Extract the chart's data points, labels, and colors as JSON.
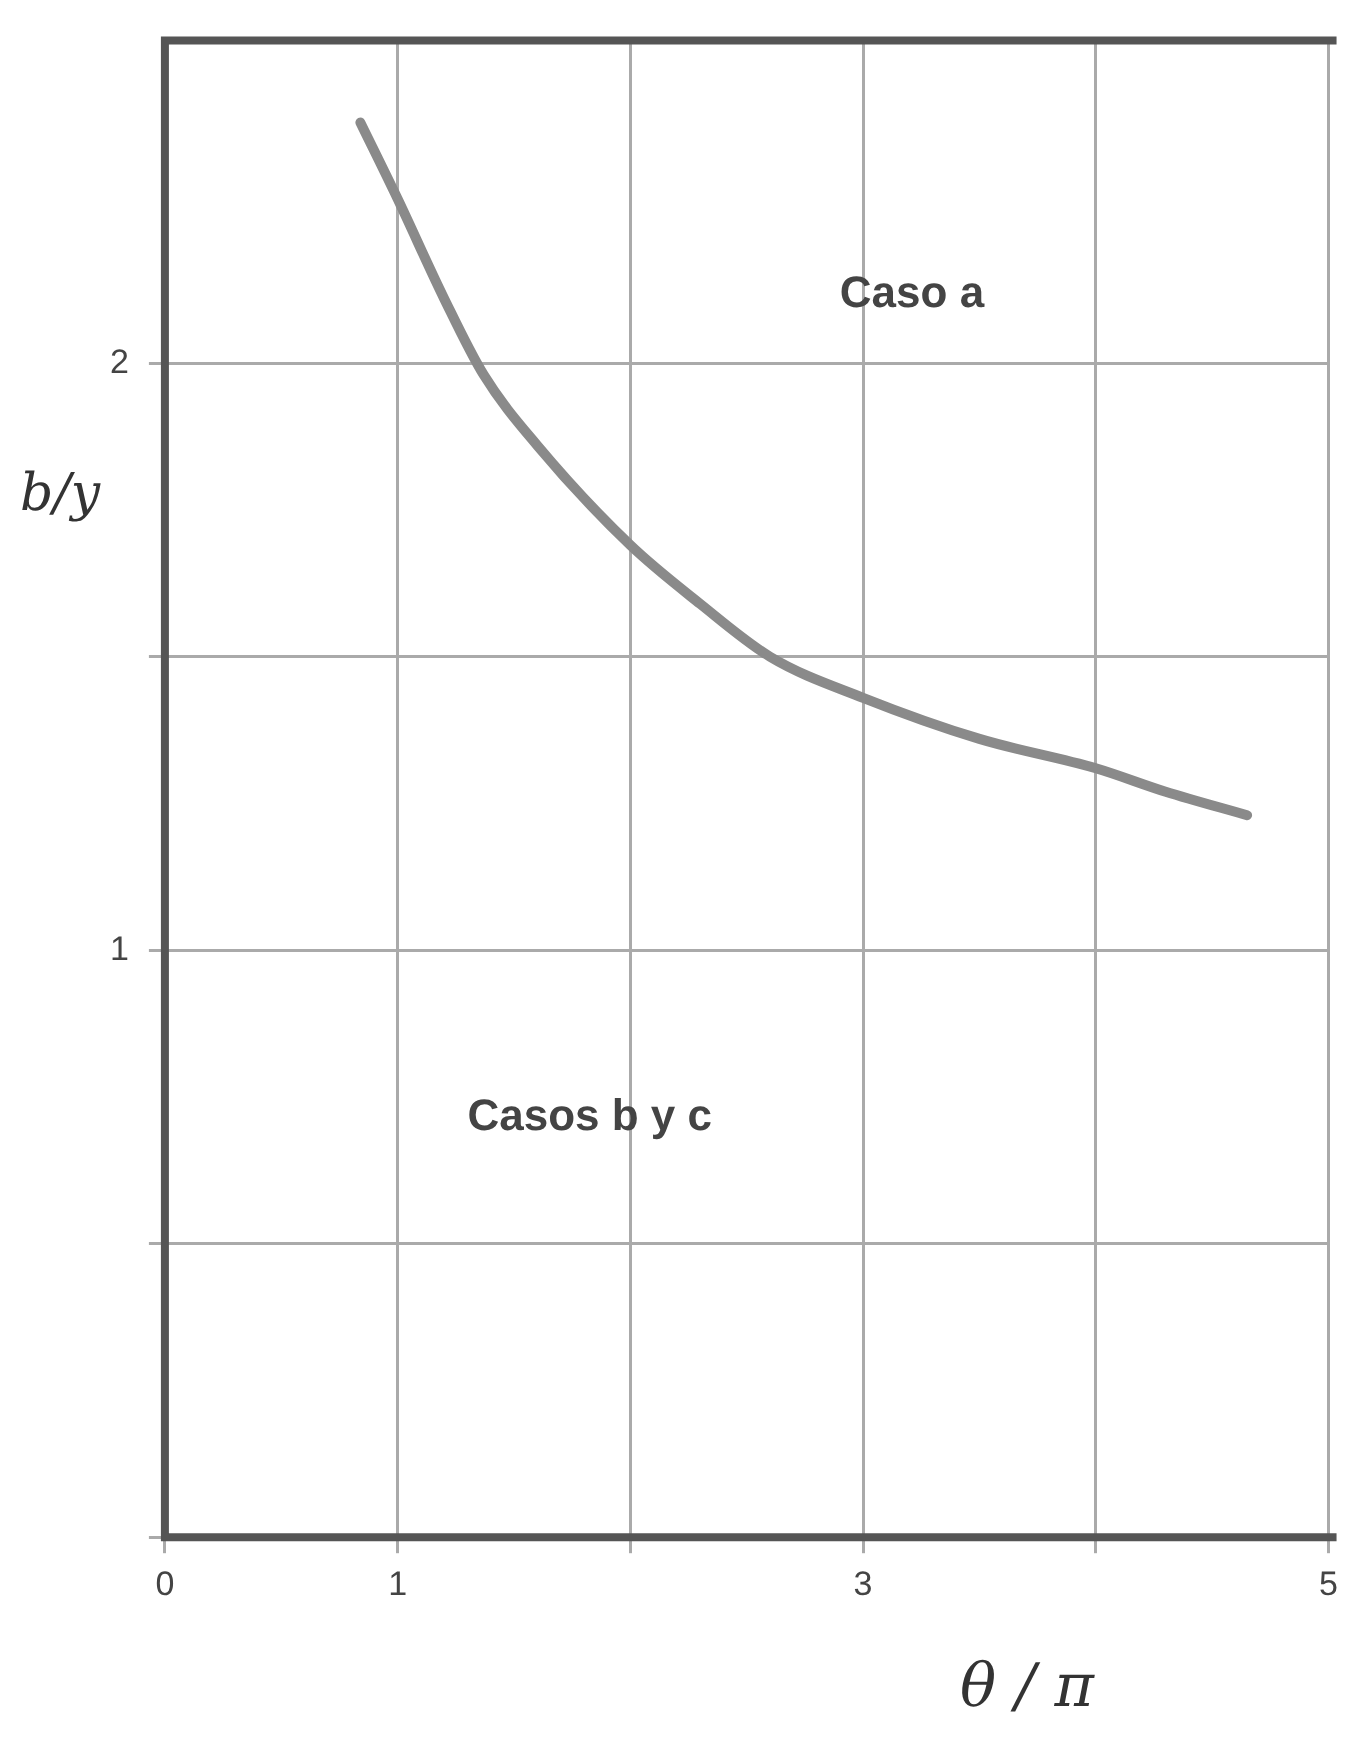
{
  "chart_data": {
    "type": "line",
    "xlabel": "θ / π",
    "ylabel": "b/y",
    "annotations": [
      "Caso a",
      "Casos b y c"
    ],
    "x": [
      0.84,
      1.0,
      1.2,
      1.37,
      1.6,
      2.0,
      2.3,
      2.6,
      3.0,
      3.5,
      4.0,
      4.3,
      4.65
    ],
    "series": [
      {
        "color": "#8a8a8a",
        "values": [
          2.41,
          2.28,
          2.11,
          1.98,
          1.86,
          1.69,
          1.59,
          1.5,
          1.43,
          1.36,
          1.31,
          1.27,
          1.23
        ]
      }
    ],
    "xlim": [
      0,
      5
    ],
    "xticks": [
      {
        "value": 0,
        "label": "0"
      },
      1,
      {
        "value": 2,
        "label": null
      },
      3,
      {
        "value": 4,
        "label": null
      },
      5
    ],
    "ylim": [
      0,
      2.55
    ],
    "yticks": [
      {
        "value": 0,
        "label": null
      },
      {
        "value": 0.5,
        "label": null
      },
      1,
      {
        "value": 1.5,
        "label": null
      },
      2
    ],
    "grid": true,
    "legend": false,
    "marker": "none",
    "line_style": "solid"
  }
}
